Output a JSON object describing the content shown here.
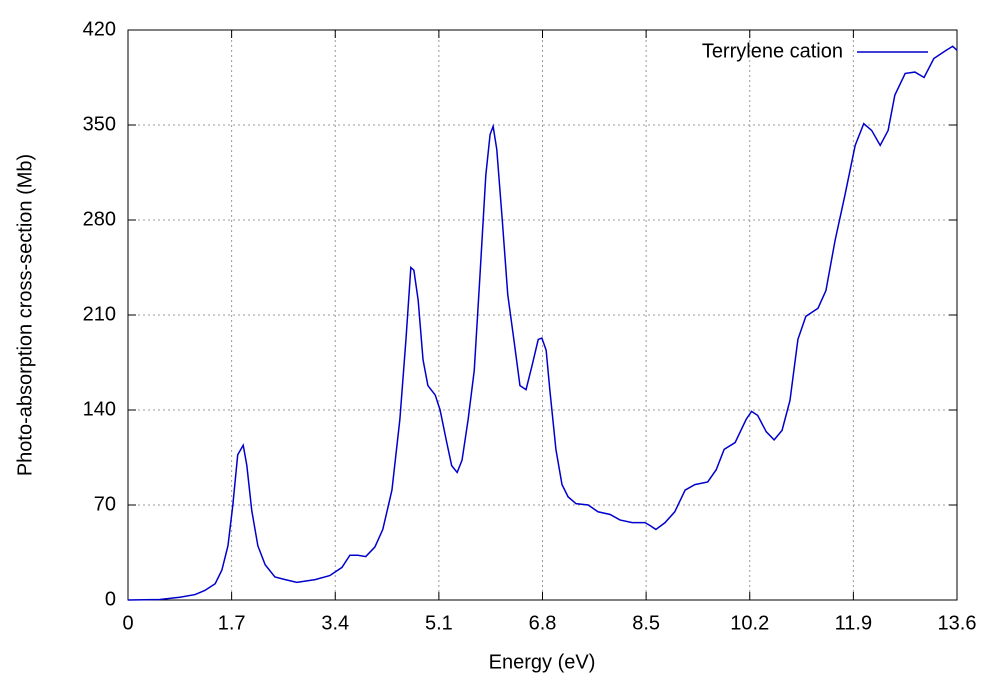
{
  "chart_data": {
    "type": "line",
    "xlabel": "Energy (eV)",
    "ylabel": "Photo-absorption cross-section (Mb)",
    "xlim": [
      0,
      13.6
    ],
    "ylim": [
      0,
      420
    ],
    "xticks": [
      0,
      1.7,
      3.4,
      5.1,
      6.8,
      8.5,
      10.2,
      11.9,
      13.6
    ],
    "yticks": [
      0,
      70,
      140,
      210,
      280,
      350,
      420
    ],
    "grid": true,
    "legend": "upper right",
    "x": [
      0,
      0.52,
      0.85,
      1.1,
      1.26,
      1.43,
      1.54,
      1.64,
      1.72,
      1.8,
      1.89,
      1.95,
      2.03,
      2.13,
      2.25,
      2.41,
      2.58,
      2.77,
      3.07,
      3.31,
      3.51,
      3.64,
      3.77,
      3.9,
      4.05,
      4.18,
      4.33,
      4.46,
      4.56,
      4.64,
      4.69,
      4.76,
      4.84,
      4.92,
      5.04,
      5.12,
      5.22,
      5.31,
      5.4,
      5.48,
      5.58,
      5.68,
      5.77,
      5.87,
      5.94,
      5.99,
      6.05,
      6.14,
      6.23,
      6.33,
      6.43,
      6.53,
      6.63,
      6.73,
      6.79,
      6.86,
      6.92,
      7.02,
      7.12,
      7.22,
      7.35,
      7.55,
      7.71,
      7.91,
      8.07,
      8.27,
      8.48,
      8.56,
      8.66,
      8.81,
      8.97,
      9.14,
      9.3,
      9.51,
      9.65,
      9.78,
      9.96,
      10.14,
      10.23,
      10.33,
      10.47,
      10.6,
      10.73,
      10.86,
      10.99,
      11.12,
      11.32,
      11.45,
      11.6,
      11.76,
      11.93,
      12.07,
      12.2,
      12.34,
      12.47,
      12.58,
      12.75,
      12.91,
      13.06,
      13.22,
      13.42,
      13.53,
      13.6
    ],
    "series": [
      {
        "name": "Terrylene cation",
        "color": "#0000cc",
        "values": [
          0,
          0.4,
          2,
          4,
          7,
          12,
          22,
          40,
          70,
          107,
          114,
          99,
          66,
          40,
          26,
          17,
          15,
          13,
          15,
          18,
          24,
          33,
          33,
          32,
          39,
          52,
          81,
          133,
          192,
          245,
          243,
          221,
          177,
          158,
          151,
          140,
          118,
          99,
          94,
          103,
          133,
          169,
          236,
          313,
          343,
          349,
          332,
          280,
          225,
          192,
          158,
          155,
          173,
          192,
          193,
          184,
          155,
          111,
          85,
          76,
          71,
          70,
          65,
          63,
          59,
          57,
          57,
          55,
          52,
          57,
          65,
          81,
          85,
          87,
          96,
          111,
          116,
          133,
          139,
          136,
          124,
          118,
          125,
          147,
          192,
          209,
          215,
          228,
          265,
          298,
          335,
          351,
          346,
          335,
          346,
          372,
          388,
          389,
          385,
          399,
          405,
          408,
          405
        ]
      }
    ]
  }
}
